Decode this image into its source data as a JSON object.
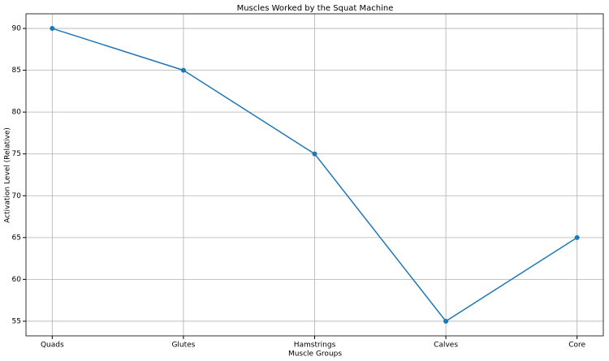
{
  "chart_data": {
    "type": "line",
    "title": "Muscles Worked by the Squat Machine",
    "x_label": "Muscle Groups",
    "y_label": "Activation Level (Relative)",
    "categories": [
      "Quads",
      "Glutes",
      "Hamstrings",
      "Calves",
      "Core"
    ],
    "series": [
      {
        "color": "#1f77b4",
        "values": [
          90,
          85,
          75,
          55,
          65
        ]
      }
    ],
    "ylim": [
      53.25,
      91.75
    ],
    "yticks": [
      55,
      60,
      65,
      70,
      75,
      80,
      85,
      90
    ],
    "grid": true
  }
}
